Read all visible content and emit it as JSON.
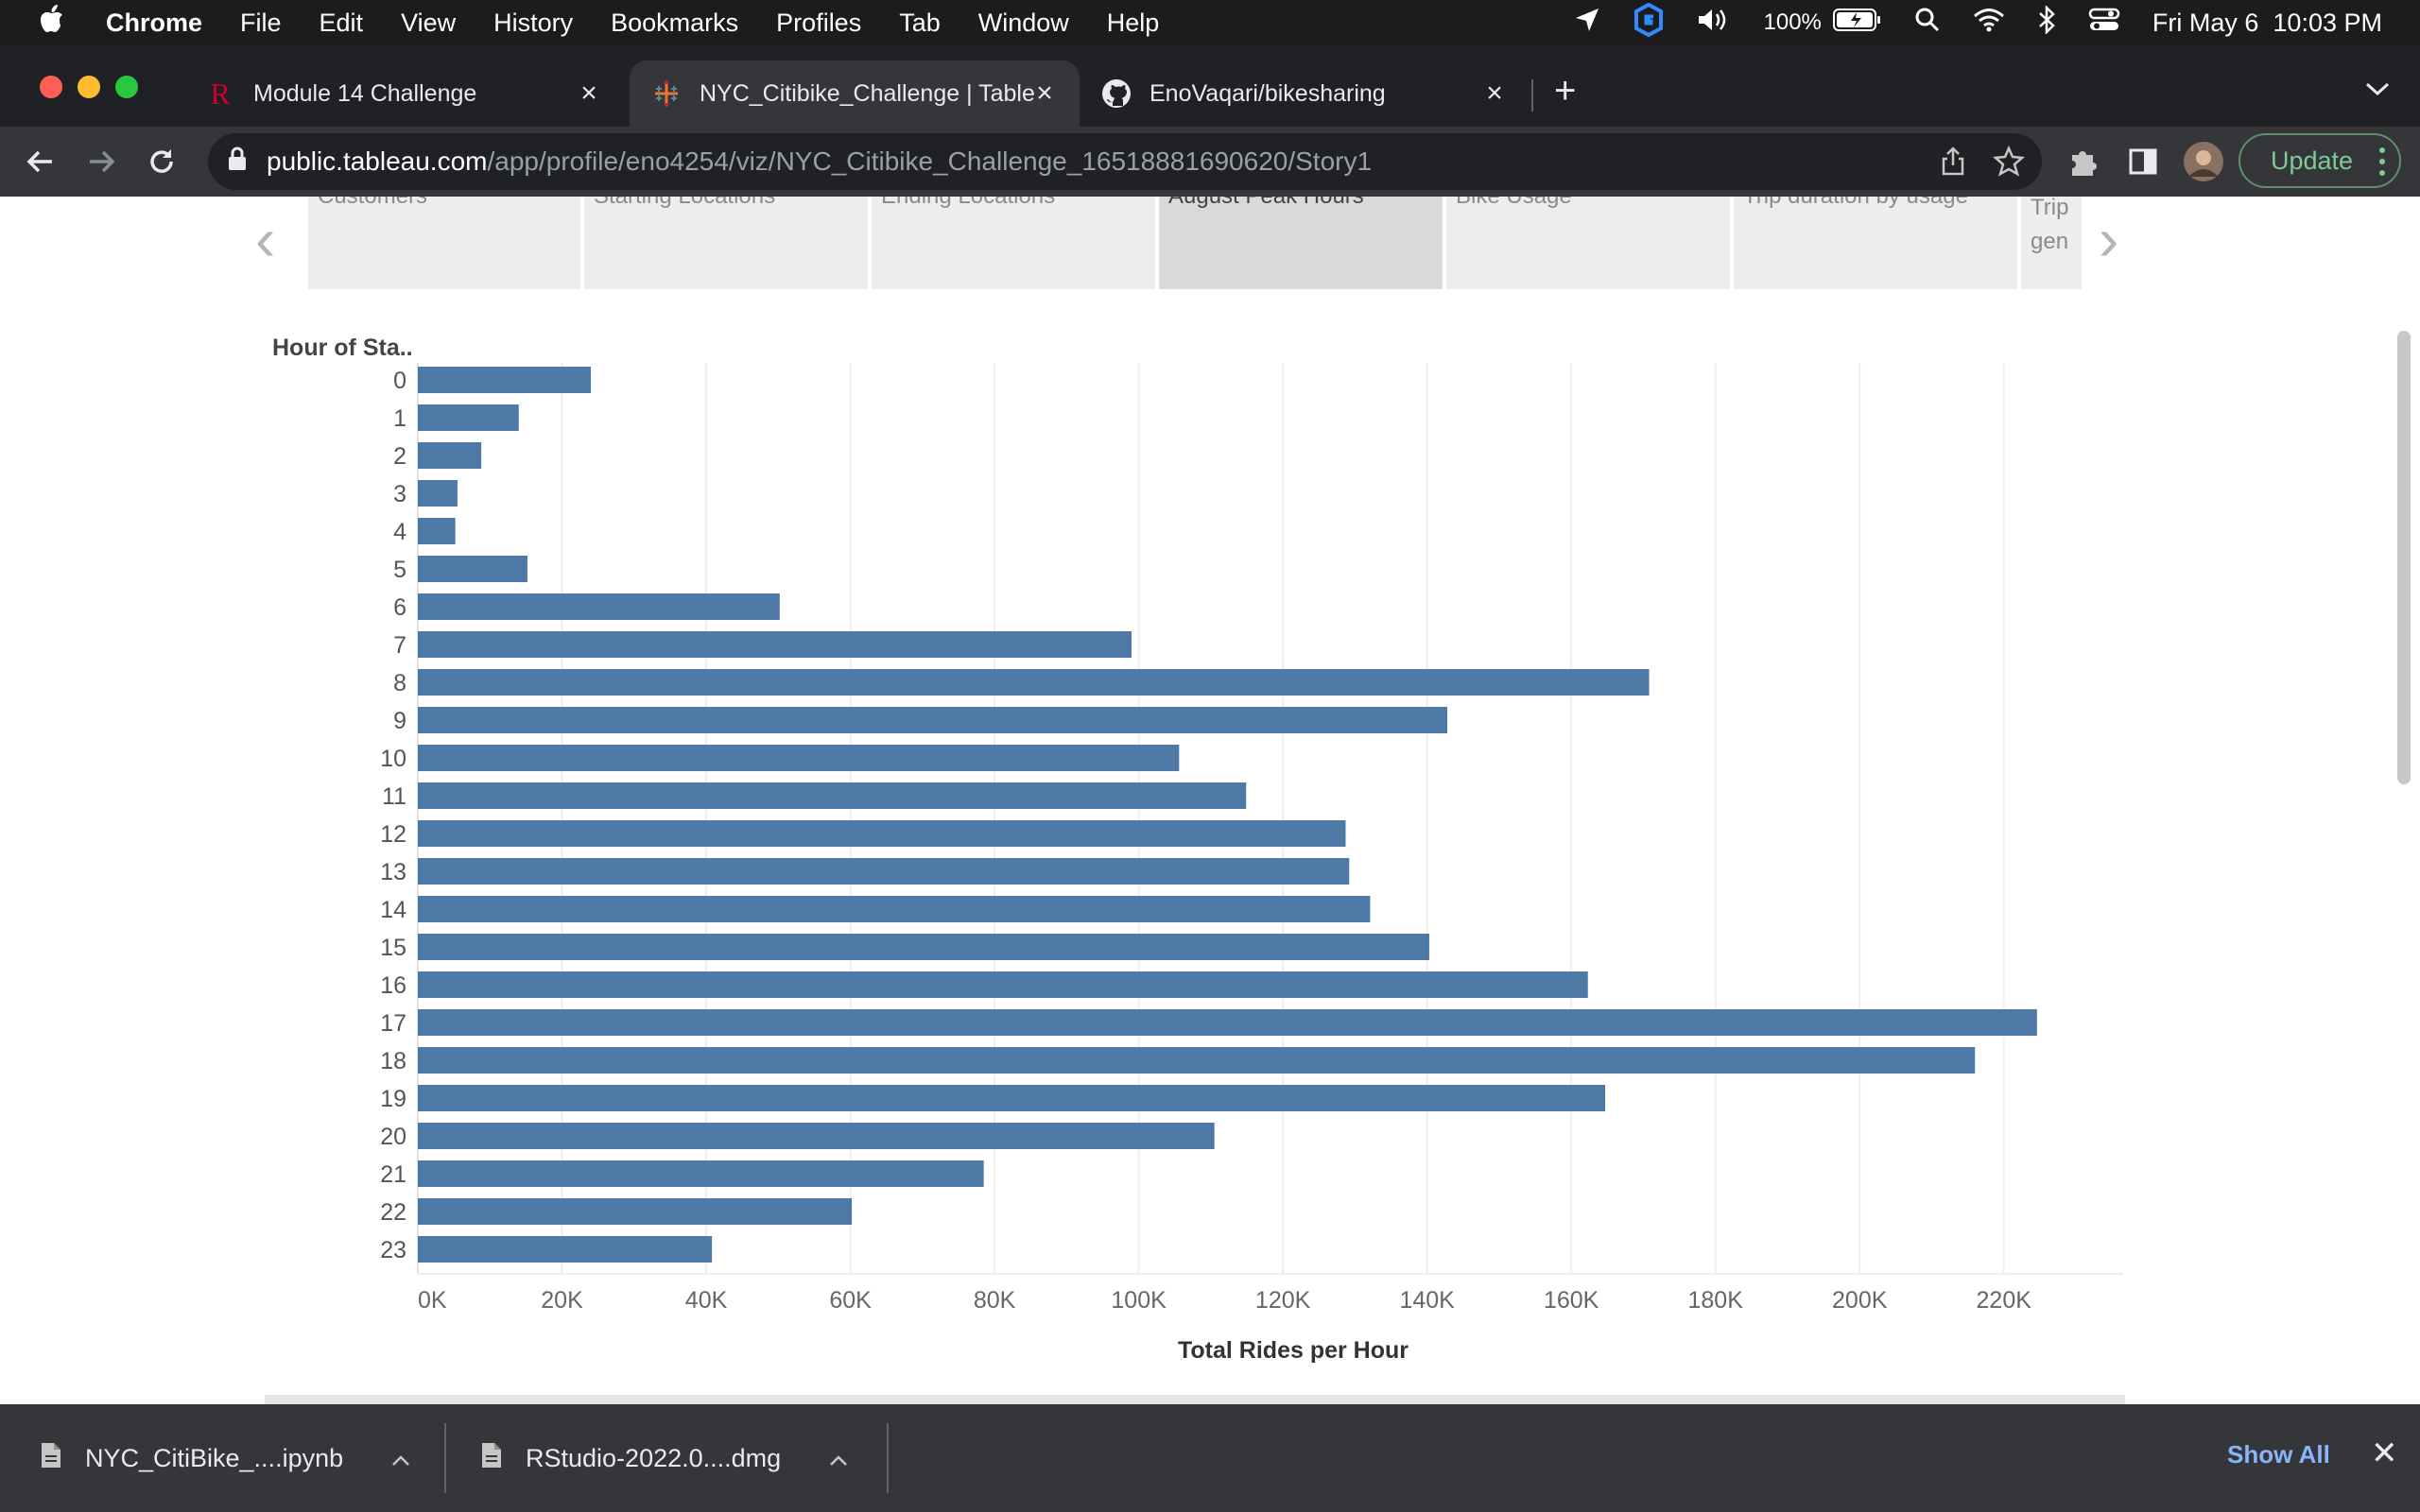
{
  "menubar": {
    "apple": "",
    "app": "Chrome",
    "items": [
      "File",
      "Edit",
      "View",
      "History",
      "Bookmarks",
      "Profiles",
      "Tab",
      "Window",
      "Help"
    ],
    "battery": "100%",
    "datetime": "Fri May 6  10:03 PM"
  },
  "tabs": [
    {
      "title": "Module 14 Challenge",
      "icon": "rutgers-r-icon",
      "active": false
    },
    {
      "title": "NYC_Citibike_Challenge | Table",
      "icon": "tableau-icon",
      "active": true
    },
    {
      "title": "EnoVaqari/bikesharing",
      "icon": "github-icon",
      "active": false
    }
  ],
  "toolbar": {
    "url_host": "public.tableau.com",
    "url_path": "/app/profile/eno4254/viz/NYC_Citibike_Challenge_16518881690620/Story1",
    "update_label": "Update"
  },
  "story_points": [
    {
      "label": "Customers",
      "selected": false
    },
    {
      "label": "Starting Locations",
      "selected": false
    },
    {
      "label": "Ending Locations",
      "selected": false
    },
    {
      "label": "August Peak Hours",
      "selected": true
    },
    {
      "label": "Bike Usage",
      "selected": false
    },
    {
      "label": "Trip duration by usage",
      "selected": false
    },
    {
      "label": "Trip gen",
      "selected": false
    }
  ],
  "chart_data": {
    "type": "bar",
    "orientation": "horizontal",
    "row_header": "Hour of Sta..",
    "xlabel": "Total Rides per Hour",
    "categories": [
      "0",
      "1",
      "2",
      "3",
      "4",
      "5",
      "6",
      "7",
      "8",
      "9",
      "10",
      "11",
      "12",
      "13",
      "14",
      "15",
      "16",
      "17",
      "18",
      "19",
      "20",
      "21",
      "22",
      "23"
    ],
    "values": [
      24000,
      14000,
      8800,
      5500,
      5200,
      15200,
      50200,
      99000,
      170800,
      142800,
      105600,
      114900,
      128700,
      129200,
      132100,
      140300,
      162300,
      224600,
      216000,
      164700,
      110500,
      78500,
      60200,
      40800
    ],
    "xlim": [
      0,
      230000
    ],
    "xticks": [
      0,
      20000,
      40000,
      60000,
      80000,
      100000,
      120000,
      140000,
      160000,
      180000,
      200000,
      220000
    ],
    "xtick_labels": [
      "0K",
      "20K",
      "40K",
      "60K",
      "80K",
      "100K",
      "120K",
      "140K",
      "160K",
      "180K",
      "200K",
      "220K"
    ],
    "color": "#4e79a7",
    "grid": true
  },
  "downloads": [
    {
      "name": "NYC_CitiBike_....ipynb"
    },
    {
      "name": "RStudio-2022.0....dmg"
    }
  ],
  "downloads_show_all": "Show All"
}
